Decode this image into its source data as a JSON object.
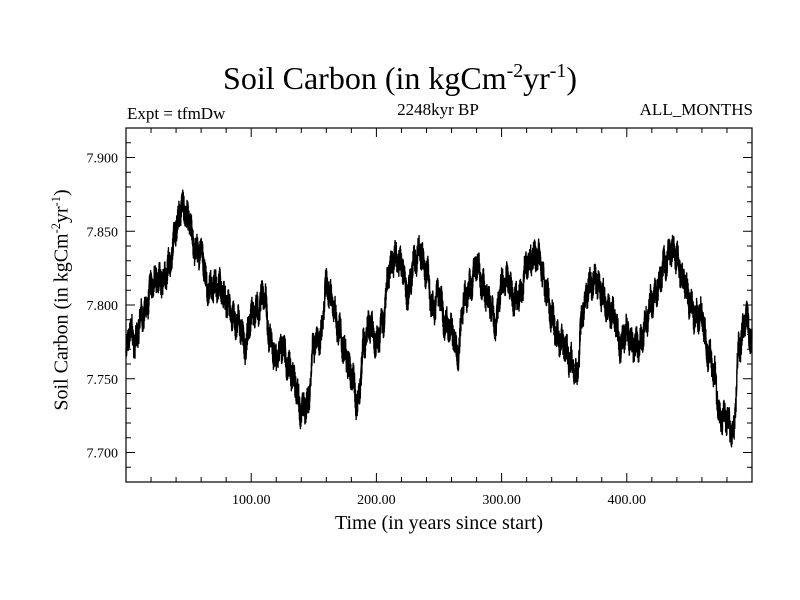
{
  "chart_data": {
    "type": "line",
    "title_main": "Soil Carbon (in kgCm",
    "title_exp1": "-2",
    "title_mid": "yr",
    "title_exp2": "-1",
    "title_close": ")",
    "left_caption": "Expt = tfmDw",
    "center_caption": "2248kyr BP",
    "right_caption": "ALL_MONTHS",
    "xlabel": "Time (in years since start)",
    "ylabel_main": "Soil Carbon (in kgCm",
    "ylabel_exp1": "-2",
    "ylabel_mid": "yr",
    "ylabel_exp2": "-1",
    "ylabel_close": ")",
    "xlim": [
      0,
      500
    ],
    "ylim": [
      7.68,
      7.92
    ],
    "xticks": [
      100,
      200,
      300,
      400
    ],
    "xtick_labels": [
      "100.00",
      "200.00",
      "300.00",
      "400.00"
    ],
    "yticks": [
      7.7,
      7.75,
      7.8,
      7.85,
      7.9
    ],
    "ytick_labels": [
      "7.700",
      "7.750",
      "7.800",
      "7.850",
      "7.900"
    ],
    "series": [
      {
        "name": "Soil Carbon",
        "x": [
          0,
          4,
          8,
          12,
          16,
          20,
          25,
          30,
          35,
          40,
          45,
          50,
          55,
          60,
          65,
          70,
          75,
          80,
          85,
          90,
          95,
          100,
          105,
          110,
          115,
          120,
          125,
          130,
          135,
          140,
          145,
          150,
          155,
          160,
          165,
          170,
          175,
          180,
          185,
          190,
          195,
          200,
          205,
          210,
          215,
          220,
          225,
          230,
          235,
          240,
          245,
          250,
          255,
          260,
          265,
          270,
          275,
          280,
          285,
          290,
          295,
          300,
          305,
          310,
          315,
          320,
          325,
          330,
          335,
          340,
          345,
          350,
          355,
          360,
          365,
          370,
          375,
          380,
          385,
          390,
          395,
          400,
          405,
          410,
          415,
          420,
          425,
          430,
          435,
          440,
          445,
          450,
          455,
          460,
          465,
          470,
          475,
          480,
          485,
          490,
          495,
          500
        ],
        "y": [
          7.765,
          7.785,
          7.775,
          7.79,
          7.8,
          7.81,
          7.82,
          7.815,
          7.83,
          7.85,
          7.87,
          7.855,
          7.84,
          7.835,
          7.815,
          7.81,
          7.815,
          7.8,
          7.795,
          7.785,
          7.775,
          7.79,
          7.8,
          7.805,
          7.78,
          7.76,
          7.775,
          7.755,
          7.75,
          7.725,
          7.735,
          7.77,
          7.78,
          7.81,
          7.805,
          7.78,
          7.77,
          7.75,
          7.735,
          7.77,
          7.79,
          7.77,
          7.79,
          7.82,
          7.835,
          7.825,
          7.81,
          7.825,
          7.84,
          7.82,
          7.8,
          7.805,
          7.79,
          7.78,
          7.77,
          7.8,
          7.815,
          7.825,
          7.815,
          7.8,
          7.79,
          7.81,
          7.82,
          7.8,
          7.81,
          7.825,
          7.835,
          7.83,
          7.815,
          7.79,
          7.78,
          7.77,
          7.765,
          7.75,
          7.8,
          7.81,
          7.82,
          7.805,
          7.8,
          7.79,
          7.775,
          7.78,
          7.775,
          7.77,
          7.79,
          7.8,
          7.815,
          7.825,
          7.84,
          7.83,
          7.82,
          7.8,
          7.795,
          7.79,
          7.77,
          7.75,
          7.725,
          7.72,
          7.715,
          7.77,
          7.795,
          7.77
        ],
        "noise_amplitude": 0.018
      }
    ]
  }
}
